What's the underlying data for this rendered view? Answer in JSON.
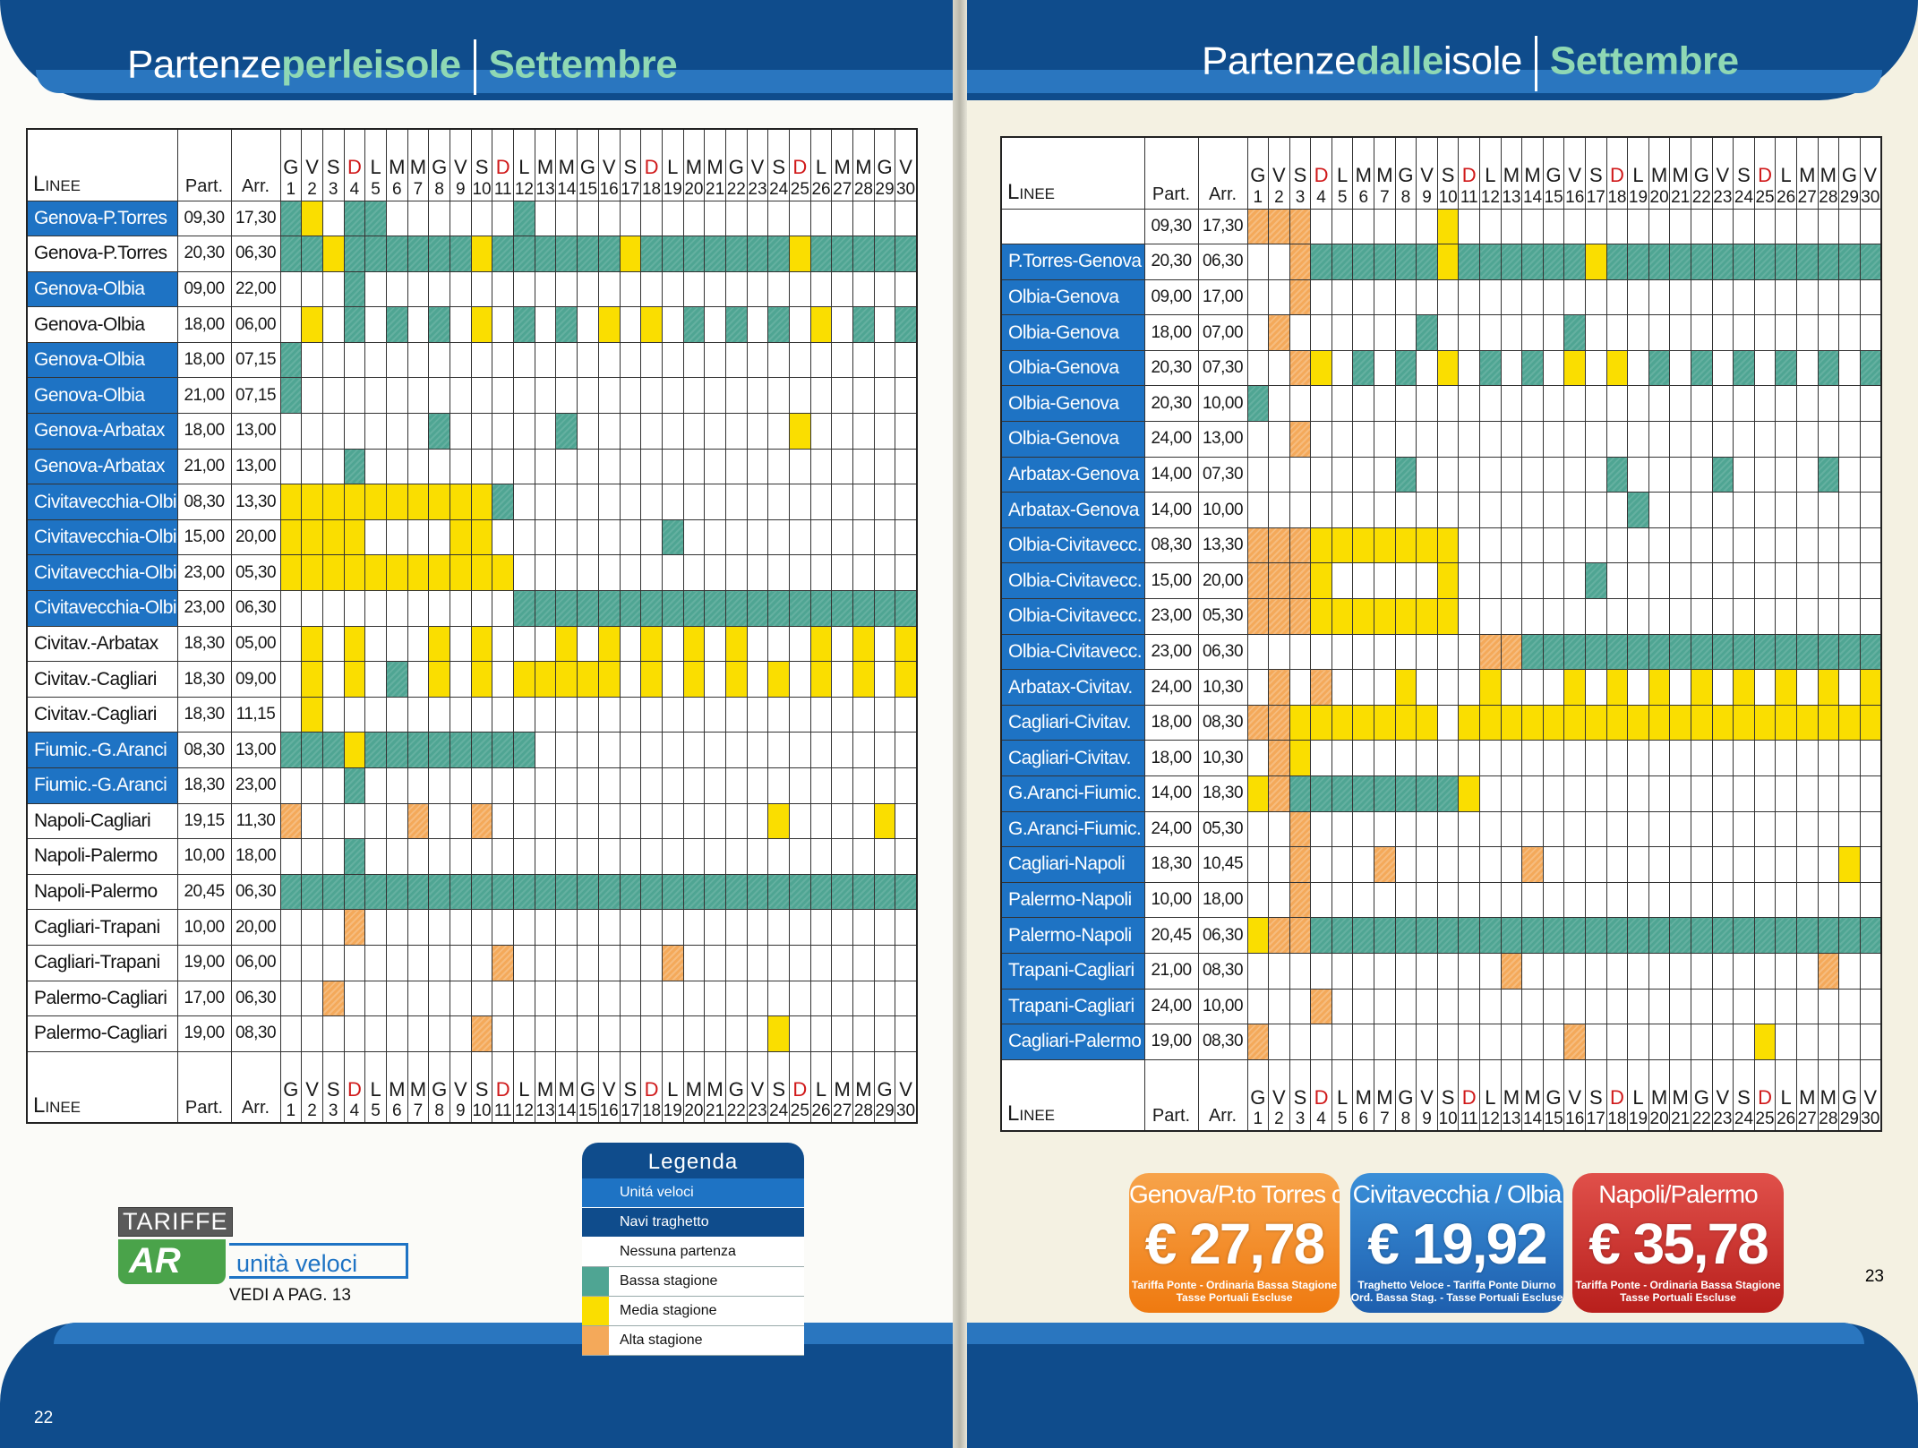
{
  "left_page": {
    "title_normal": "Partenze",
    "title_highlight": "perleisole",
    "month": "Settembre",
    "page_number": "22",
    "schedule": {
      "header": {
        "linee": "Linee",
        "part": "Part.",
        "arr": "Arr.",
        "weekdays": [
          "G",
          "V",
          "S",
          "D",
          "L",
          "M",
          "M",
          "G",
          "V",
          "S",
          "D",
          "L",
          "M",
          "M",
          "G",
          "V",
          "S",
          "D",
          "L",
          "M",
          "M",
          "G",
          "V",
          "S",
          "D",
          "L",
          "M",
          "M",
          "G",
          "V"
        ],
        "days": [
          "1",
          "2",
          "3",
          "4",
          "5",
          "6",
          "7",
          "8",
          "9",
          "10",
          "11",
          "12",
          "13",
          "14",
          "15",
          "16",
          "17",
          "18",
          "19",
          "20",
          "21",
          "22",
          "23",
          "24",
          "25",
          "26",
          "27",
          "28",
          "29",
          "30"
        ]
      },
      "rows": [
        {
          "line": "Genova-P.Torres",
          "type": "fast",
          "part": "09,30",
          "arr": "17,30",
          "cells": "120110000001000000000000000000"
        },
        {
          "line": "Genova-P.Torres",
          "type": "ferry",
          "part": "20,30",
          "arr": "06,30",
          "cells": "112111111211111121111111211111"
        },
        {
          "line": "Genova-Olbia",
          "type": "fast",
          "part": "09,00",
          "arr": "22,00",
          "cells": "000100000000000000000000000000"
        },
        {
          "line": "Genova-Olbia",
          "type": "ferry",
          "part": "18,00",
          "arr": "06,00",
          "cells": "020101010201010202010101020101"
        },
        {
          "line": "Genova-Olbia",
          "type": "fast",
          "part": "18,00",
          "arr": "07,15",
          "cells": "100000000000000000000000000000"
        },
        {
          "line": "Genova-Olbia",
          "type": "fast",
          "part": "21,00",
          "arr": "07,15",
          "cells": "100000000000000000000000000000"
        },
        {
          "line": "Genova-Arbatax",
          "type": "fast",
          "part": "18,00",
          "arr": "13,00",
          "cells": "000000010000010000000000200000"
        },
        {
          "line": "Genova-Arbatax",
          "type": "fast",
          "part": "21,00",
          "arr": "13,00",
          "cells": "000100000000000000000000000000"
        },
        {
          "line": "Civitavecchia-Olbia",
          "type": "fast",
          "part": "08,30",
          "arr": "13,30",
          "cells": "222222222210000000000000000000"
        },
        {
          "line": "Civitavecchia-Olbia",
          "type": "fast",
          "part": "15,00",
          "arr": "20,00",
          "cells": "222200002200000000100000000000"
        },
        {
          "line": "Civitavecchia-Olbia",
          "type": "fast",
          "part": "23,00",
          "arr": "05,30",
          "cells": "222222222220000000000000000000"
        },
        {
          "line": "Civitavecchia-Olbia",
          "type": "fast",
          "part": "23,00",
          "arr": "06,30",
          "cells": "000000000001111111111111111111"
        },
        {
          "line": "Civitav.-Arbatax",
          "type": "ferry",
          "part": "18,30",
          "arr": "05,00",
          "cells": "020200020200020202020200020202"
        },
        {
          "line": "Civitav.-Cagliari",
          "type": "ferry",
          "part": "18,30",
          "arr": "09,00",
          "cells": "020201020202222202020202020202"
        },
        {
          "line": "Civitav.-Cagliari",
          "type": "ferry",
          "part": "18,30",
          "arr": "11,15",
          "cells": "020000000000000000000000000000"
        },
        {
          "line": "Fiumic.-G.Aranci",
          "type": "fast",
          "part": "08,30",
          "arr": "13,00",
          "cells": "111211111111000000000000000000"
        },
        {
          "line": "Fiumic.-G.Aranci",
          "type": "fast",
          "part": "18,30",
          "arr": "23,00",
          "cells": "000100000000000000000000000000"
        },
        {
          "line": "Napoli-Cagliari",
          "type": "ferry",
          "part": "19,15",
          "arr": "11,30",
          "cells": "300000300300000000000002000020"
        },
        {
          "line": "Napoli-Palermo",
          "type": "ferry",
          "part": "10,00",
          "arr": "18,00",
          "cells": "000100000000000000000000000000"
        },
        {
          "line": "Napoli-Palermo",
          "type": "ferry",
          "part": "20,45",
          "arr": "06,30",
          "cells": "111111111111111111111111111111"
        },
        {
          "line": "Cagliari-Trapani",
          "type": "ferry",
          "part": "10,00",
          "arr": "20,00",
          "cells": "000300000000000000000000000000"
        },
        {
          "line": "Cagliari-Trapani",
          "type": "ferry",
          "part": "19,00",
          "arr": "06,00",
          "cells": "000000000030000000300000000000"
        },
        {
          "line": "Palermo-Cagliari",
          "type": "ferry",
          "part": "17,00",
          "arr": "06,30",
          "cells": "003000000000000000000000000000"
        },
        {
          "line": "Palermo-Cagliari",
          "type": "ferry",
          "part": "19,00",
          "arr": "08,30",
          "cells": "000000000300000000000002000000"
        }
      ]
    }
  },
  "right_page": {
    "title_normal_1": "Partenze",
    "title_highlight": "dalle",
    "title_normal_2": "isole",
    "month": "Settembre",
    "page_number": "23",
    "schedule": {
      "header": {
        "linee": "Linee",
        "part": "Part.",
        "arr": "Arr.",
        "weekdays": [
          "G",
          "V",
          "S",
          "D",
          "L",
          "M",
          "M",
          "G",
          "V",
          "S",
          "D",
          "L",
          "M",
          "M",
          "G",
          "V",
          "S",
          "D",
          "L",
          "M",
          "M",
          "G",
          "V",
          "S",
          "D",
          "L",
          "M",
          "M",
          "G",
          "V"
        ],
        "days": [
          "1",
          "2",
          "3",
          "4",
          "5",
          "6",
          "7",
          "8",
          "9",
          "10",
          "11",
          "12",
          "13",
          "14",
          "15",
          "16",
          "17",
          "18",
          "19",
          "20",
          "21",
          "22",
          "23",
          "24",
          "25",
          "26",
          "27",
          "28",
          "29",
          "30"
        ]
      },
      "rows": [
        {
          "line": "",
          "type": "ferry",
          "part": "09,30",
          "arr": "17,30",
          "cells": "333000000200000000000000000000"
        },
        {
          "line": "P.Torres-Genova",
          "type": "fast",
          "part": "20,30",
          "arr": "06,30",
          "cells": "003111111211111121111111111111"
        },
        {
          "line": "Olbia-Genova",
          "type": "fast",
          "part": "09,00",
          "arr": "17,00",
          "cells": "003000000000000000000000000000"
        },
        {
          "line": "Olbia-Genova",
          "type": "fast",
          "part": "18,00",
          "arr": "07,00",
          "cells": "030000001000000100000000000000"
        },
        {
          "line": "Olbia-Genova",
          "type": "fast",
          "part": "20,30",
          "arr": "07,30",
          "cells": "003201010201010202010101010101"
        },
        {
          "line": "Olbia-Genova",
          "type": "fast",
          "part": "20,30",
          "arr": "10,00",
          "cells": "100000000000000000000000000000"
        },
        {
          "line": "Olbia-Genova",
          "type": "fast",
          "part": "24,00",
          "arr": "13,00",
          "cells": "003000000000000000000000000000"
        },
        {
          "line": "Arbatax-Genova",
          "type": "fast",
          "part": "14,00",
          "arr": "07,30",
          "cells": "000000010000000001000010000100"
        },
        {
          "line": "Arbatax-Genova",
          "type": "fast",
          "part": "14,00",
          "arr": "10,00",
          "cells": "000000000000000000100000000000"
        },
        {
          "line": "Olbia-Civitavecc.",
          "type": "fast",
          "part": "08,30",
          "arr": "13,30",
          "cells": "333222222200000000000000000000"
        },
        {
          "line": "Olbia-Civitavecc.",
          "type": "fast",
          "part": "15,00",
          "arr": "20,00",
          "cells": "333200000200000010000000000000"
        },
        {
          "line": "Olbia-Civitavecc.",
          "type": "fast",
          "part": "23,00",
          "arr": "05,30",
          "cells": "333222222200000000000000000000"
        },
        {
          "line": "Olbia-Civitavecc.",
          "type": "fast",
          "part": "23,00",
          "arr": "06,30",
          "cells": "000000000003311111111111111111"
        },
        {
          "line": "Arbatax-Civitav.",
          "type": "fast",
          "part": "24,00",
          "arr": "10,30",
          "cells": "030300020002000202020202020202"
        },
        {
          "line": "Cagliari-Civitav.",
          "type": "fast",
          "part": "18,00",
          "arr": "08,30",
          "cells": "332222222022222222222222222222"
        },
        {
          "line": "Cagliari-Civitav.",
          "type": "fast",
          "part": "18,00",
          "arr": "10,30",
          "cells": "032000000000000000000000000000"
        },
        {
          "line": "G.Aranci-Fiumic.",
          "type": "fast",
          "part": "14,00",
          "arr": "18,30",
          "cells": "231111111120000000000000000000"
        },
        {
          "line": "G.Aranci-Fiumic.",
          "type": "fast",
          "part": "24,00",
          "arr": "05,30",
          "cells": "003000000000000000000000000000"
        },
        {
          "line": "Cagliari-Napoli",
          "type": "fast",
          "part": "18,30",
          "arr": "10,45",
          "cells": "003000300000030000000000000020"
        },
        {
          "line": "Palermo-Napoli",
          "type": "fast",
          "part": "10,00",
          "arr": "18,00",
          "cells": "003000000000000000000000000000"
        },
        {
          "line": "Palermo-Napoli",
          "type": "fast",
          "part": "20,45",
          "arr": "06,30",
          "cells": "233111111111111111111111111111"
        },
        {
          "line": "Trapani-Cagliari",
          "type": "fast",
          "part": "21,00",
          "arr": "08,30",
          "cells": "000000000000300000000000000300"
        },
        {
          "line": "Trapani-Cagliari",
          "type": "fast",
          "part": "24,00",
          "arr": "10,00",
          "cells": "000300000000000000000000000000"
        },
        {
          "line": "Cagliari-Palermo",
          "type": "fast",
          "part": "19,00",
          "arr": "08,30",
          "cells": "300000000000000300000000200000"
        }
      ]
    }
  },
  "legend": {
    "title": "Legenda",
    "items": [
      {
        "label": "Unitá veloci",
        "key": "fast"
      },
      {
        "label": "Navi traghetto",
        "key": "ferry"
      },
      {
        "label": "Nessuna partenza",
        "key": "none"
      },
      {
        "label": "Bassa stagione",
        "key": "low"
      },
      {
        "label": "Media stagione",
        "key": "mid"
      },
      {
        "label": "Alta stagione",
        "key": "high"
      }
    ]
  },
  "tariffe": {
    "tariffe_label": "TARIFFE",
    "ar_label": "AR",
    "units_label": "unità veloci",
    "see_page": "VEDI A PAG. 13"
  },
  "fares": [
    {
      "route": "Genova/P.to Torres o Olbia",
      "price": "€ 27,78",
      "desc1": "Tariffa Ponte - Ordinaria Bassa Stagione",
      "desc2": "Tasse Portuali Escluse",
      "color": "#ef7a10"
    },
    {
      "route": "Civitavecchia / Olbia",
      "price": "€ 19,92",
      "desc1": "Traghetto Veloce - Tariffa Ponte Diurno",
      "desc2": "Ord. Bassa Stag. - Tasse Portuali Escluse",
      "color": "#1e5fae"
    },
    {
      "route": "Napoli/Palermo",
      "price": "€ 35,78",
      "desc1": "Tariffa Ponte - Ordinaria Bassa Stagione",
      "desc2": "Tasse Portuali Escluse",
      "color": "#b81f1c"
    }
  ],
  "colors": {
    "blue_dark": "#0f4c8c",
    "blue_fast": "#1e73c4",
    "low": "#4fa593",
    "mid": "#fade00",
    "high": "#f4a95a",
    "sunday_red": "#d0191a"
  }
}
